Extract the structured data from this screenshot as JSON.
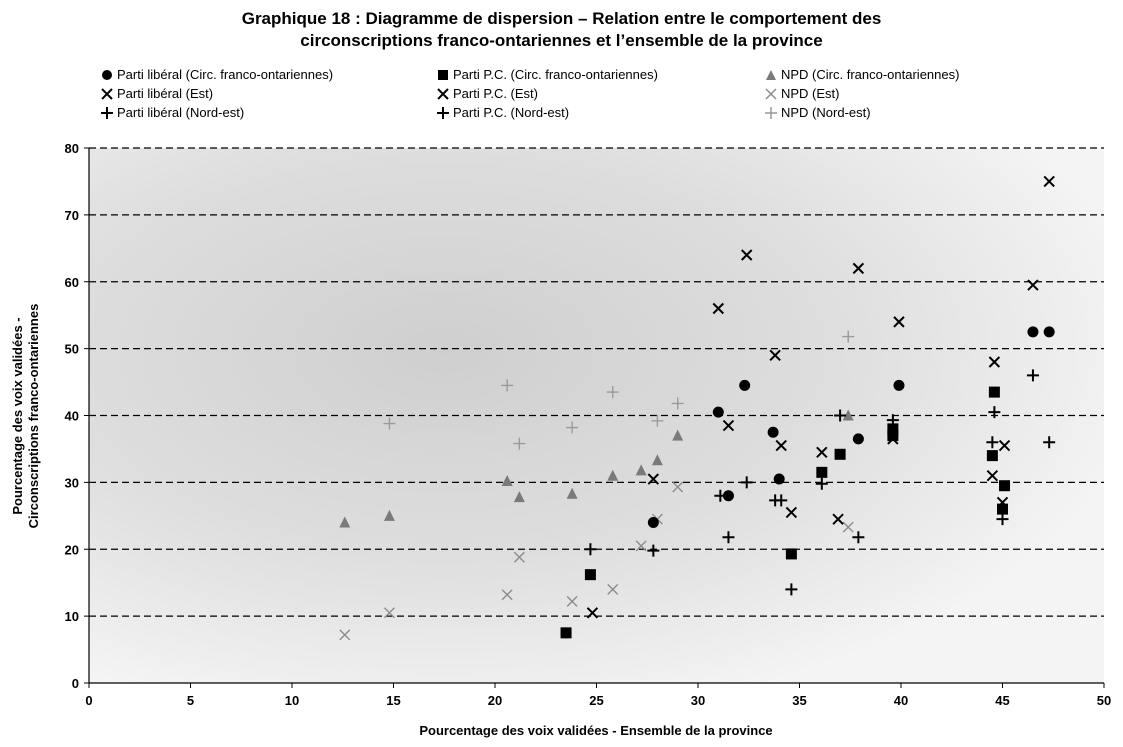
{
  "chart_data": {
    "type": "scatter",
    "title": "Graphique 18 : Diagramme de dispersion – Relation entre le comportement des circonscriptions franco-ontariennes et l'ensemble de la province",
    "title_lines": [
      "Graphique 18 : Diagramme de dispersion – Relation entre le comportement des",
      "circonscriptions franco-ontariennes et l’ensemble de la province"
    ],
    "xlabel": "Pourcentage des voix validées - Ensemble de la province",
    "ylabel_lines": [
      "Pourcentage des voix validées -",
      "Circonscriptions franco-ontariennes"
    ],
    "xlim": [
      0,
      50
    ],
    "ylim": [
      0,
      80
    ],
    "x_ticks": [
      "0",
      "5",
      "10",
      "15",
      "20",
      "25",
      "30",
      "35",
      "40",
      "45",
      "50"
    ],
    "y_ticks": [
      "0",
      "10",
      "20",
      "30",
      "40",
      "50",
      "60",
      "70",
      "80"
    ],
    "grid": "horizontal dashed",
    "legend_position": "top",
    "series": [
      {
        "name": "Parti libéral (Circ. franco-ontariennes)",
        "marker": "circle",
        "color": "#000000",
        "points": [
          [
            23.5,
            7.5
          ],
          [
            27.8,
            24
          ],
          [
            31,
            40.5
          ],
          [
            31.5,
            28
          ],
          [
            32.3,
            44.5
          ],
          [
            33.7,
            37.5
          ],
          [
            34,
            30.5
          ],
          [
            37.9,
            36.5
          ],
          [
            39.9,
            44.5
          ],
          [
            46.5,
            52.5
          ],
          [
            47.3,
            52.5
          ]
        ]
      },
      {
        "name": "Parti libéral (Est)",
        "marker": "x",
        "color": "#000000",
        "points": [
          [
            24.8,
            10.5
          ],
          [
            27.8,
            30.5
          ],
          [
            31,
            56
          ],
          [
            31.5,
            38.5
          ],
          [
            32.4,
            64
          ],
          [
            33.8,
            49
          ],
          [
            34.1,
            35.5
          ],
          [
            34.6,
            25.5
          ],
          [
            36.1,
            34.5
          ],
          [
            36.9,
            24.5
          ],
          [
            37.9,
            62
          ],
          [
            39.6,
            36.5
          ],
          [
            39.9,
            54
          ],
          [
            44.5,
            31
          ],
          [
            44.6,
            48
          ],
          [
            45,
            27
          ],
          [
            45.1,
            35.5
          ],
          [
            46.5,
            59.5
          ],
          [
            47.3,
            75
          ]
        ]
      },
      {
        "name": "Parti libéral (Nord-est)",
        "marker": "plus",
        "color": "#000000",
        "points": [
          [
            24.7,
            20
          ],
          [
            27.8,
            19.8
          ],
          [
            31.1,
            28
          ],
          [
            31.5,
            21.8
          ],
          [
            32.4,
            30
          ],
          [
            33.8,
            27.3
          ],
          [
            34.1,
            27.3
          ],
          [
            34.6,
            14
          ],
          [
            36.1,
            29.8
          ],
          [
            37,
            40
          ],
          [
            37.9,
            21.8
          ],
          [
            39.6,
            39.3
          ],
          [
            44.5,
            36
          ],
          [
            44.6,
            40.5
          ],
          [
            45,
            24.5
          ],
          [
            46.5,
            46
          ],
          [
            47.3,
            36
          ]
        ]
      },
      {
        "name": "Parti P.C. (Circ. franco-ontariennes)",
        "marker": "square",
        "color": "#000000",
        "points": [
          [
            23.5,
            7.5
          ],
          [
            24.7,
            16.2
          ],
          [
            34.6,
            19.3
          ],
          [
            36.1,
            31.5
          ],
          [
            37,
            34.2
          ],
          [
            39.6,
            38
          ],
          [
            39.6,
            37
          ],
          [
            44.5,
            34
          ],
          [
            44.6,
            43.5
          ],
          [
            45,
            26
          ],
          [
            45.1,
            29.5
          ]
        ]
      },
      {
        "name": "Parti P.C. (Est)",
        "marker": "x",
        "color": "#000000",
        "points": []
      },
      {
        "name": "Parti P.C. (Nord-est)",
        "marker": "plus",
        "color": "#000000",
        "points": []
      },
      {
        "name": "NPD (Circ. franco-ontariennes)",
        "marker": "triangle",
        "color": "#7a7a7a",
        "points": [
          [
            12.6,
            24
          ],
          [
            14.8,
            25
          ],
          [
            20.6,
            30.2
          ],
          [
            21.2,
            27.8
          ],
          [
            23.8,
            28.3
          ],
          [
            25.8,
            31
          ],
          [
            27.2,
            31.8
          ],
          [
            28,
            33.3
          ],
          [
            29,
            37
          ],
          [
            37.4,
            40
          ]
        ]
      },
      {
        "name": "NPD (Est)",
        "marker": "x",
        "color": "#8c8c8c",
        "points": [
          [
            12.6,
            7.2
          ],
          [
            14.8,
            10.5
          ],
          [
            20.6,
            13.2
          ],
          [
            21.2,
            18.8
          ],
          [
            23.8,
            12.2
          ],
          [
            25.8,
            14
          ],
          [
            27.2,
            20.5
          ],
          [
            28,
            24.5
          ],
          [
            29,
            29.3
          ],
          [
            37.4,
            23.3
          ]
        ]
      },
      {
        "name": "NPD (Nord-est)",
        "marker": "plus",
        "color": "#9a9a9a",
        "points": [
          [
            14.8,
            38.8
          ],
          [
            20.6,
            44.5
          ],
          [
            21.2,
            35.8
          ],
          [
            23.8,
            38.2
          ],
          [
            25.8,
            43.5
          ],
          [
            28,
            39.2
          ],
          [
            29,
            41.8
          ],
          [
            37.4,
            51.8
          ]
        ]
      }
    ]
  }
}
